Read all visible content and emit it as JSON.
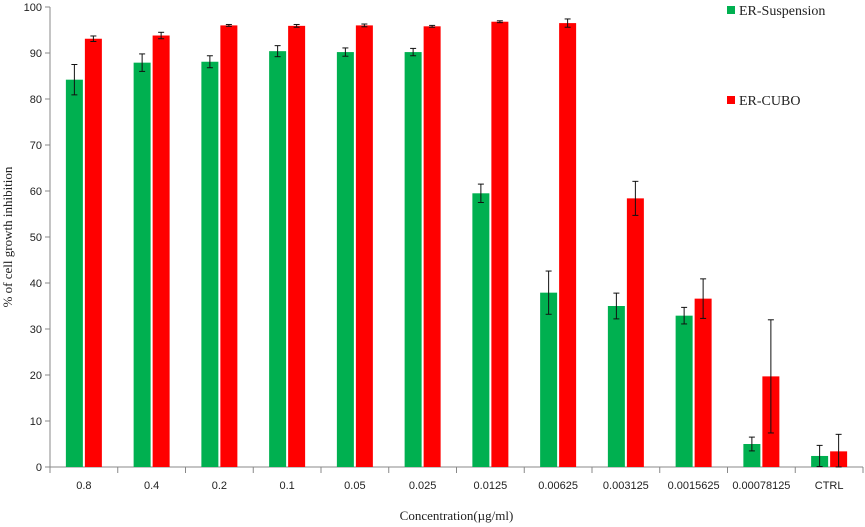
{
  "chart_data": {
    "type": "bar",
    "xlabel": "Concentration(µg/ml)",
    "ylabel": "% of cell growth inhibition",
    "ylim": [
      0,
      100
    ],
    "yticks": [
      0,
      10,
      20,
      30,
      40,
      50,
      60,
      70,
      80,
      90,
      100
    ],
    "categories": [
      "0.8",
      "0.4",
      "0.2",
      "0.1",
      "0.05",
      "0.025",
      "0.0125",
      "0.00625",
      "0.003125",
      "0.0015625",
      "0.00078125",
      "CTRL"
    ],
    "series": [
      {
        "name": "ER-Suspension",
        "color": "#00b050",
        "values": [
          84.2,
          87.9,
          88.1,
          90.4,
          90.2,
          90.2,
          59.5,
          37.9,
          35.0,
          32.9,
          5.0,
          2.4
        ],
        "errors": [
          3.3,
          1.9,
          1.3,
          1.2,
          0.9,
          0.8,
          2.0,
          4.7,
          2.8,
          1.8,
          1.5,
          2.3
        ]
      },
      {
        "name": "ER-CUBO",
        "color": "#ff0000",
        "values": [
          93.1,
          93.8,
          96.0,
          95.9,
          96.0,
          95.8,
          96.8,
          96.5,
          58.4,
          36.6,
          19.7,
          3.4
        ],
        "errors": [
          0.6,
          0.7,
          0.2,
          0.3,
          0.3,
          0.2,
          0.2,
          0.9,
          3.7,
          4.3,
          12.3,
          3.7
        ]
      }
    ],
    "legend_position": "top-right",
    "grid": false
  }
}
